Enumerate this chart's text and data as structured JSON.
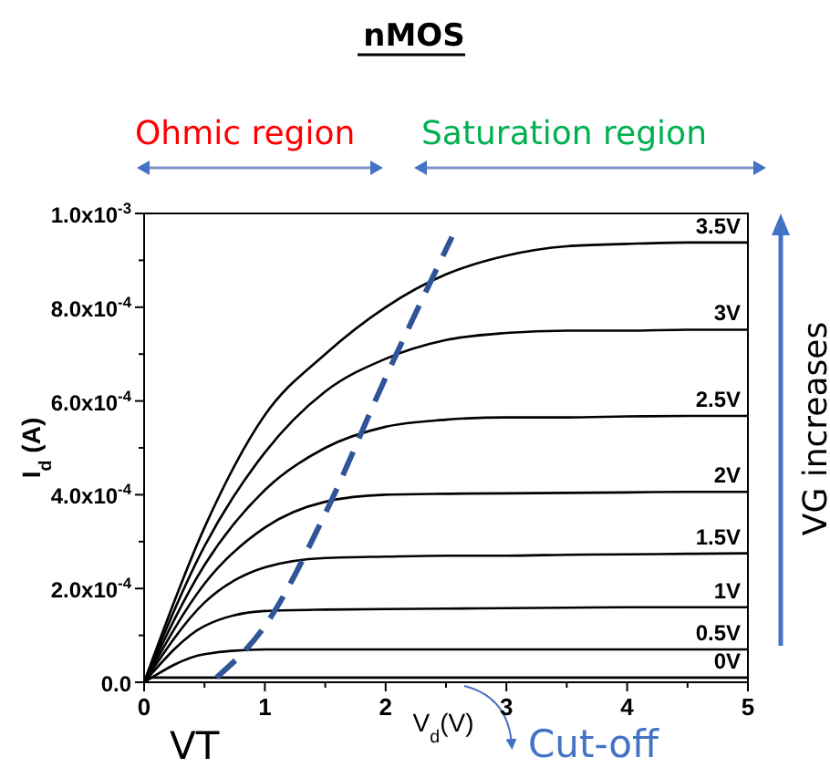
{
  "chart_data": {
    "type": "line",
    "title": "nMOS",
    "xlabel": "V$_{d}$(V)",
    "ylabel": "I$_{d}$ (A)",
    "x": [
      0,
      0.5,
      1,
      1.5,
      2,
      2.5,
      3,
      3.5,
      4,
      4.5,
      5
    ],
    "series": [
      {
        "name": "3.5V",
        "color": "#000000",
        "values": [
          0,
          0.00033,
          0.00057,
          0.0007,
          0.0008,
          0.00087,
          0.00091,
          0.00093,
          0.000935,
          0.000938,
          0.000938
        ]
      },
      {
        "name": "3V",
        "color": "#000000",
        "values": [
          0,
          0.00029,
          0.00049,
          0.00062,
          0.00069,
          0.00073,
          0.000745,
          0.00075,
          0.00075,
          0.000752,
          0.000752
        ]
      },
      {
        "name": "2.5V",
        "color": "#000000",
        "values": [
          0,
          0.00025,
          0.00041,
          0.0005,
          0.000545,
          0.00056,
          0.000565,
          0.000565,
          0.000567,
          0.000568,
          0.000568
        ]
      },
      {
        "name": "2V",
        "color": "#000000",
        "values": [
          0,
          0.00021,
          0.00033,
          0.000385,
          0.0004,
          0.000402,
          0.000403,
          0.000404,
          0.000405,
          0.000406,
          0.000406
        ]
      },
      {
        "name": "1.5V",
        "color": "#000000",
        "values": [
          0,
          0.00017,
          0.000245,
          0.000265,
          0.000268,
          0.00027,
          0.00027,
          0.000272,
          0.000273,
          0.000274,
          0.000275
        ]
      },
      {
        "name": "1V",
        "color": "#000000",
        "values": [
          0,
          0.00012,
          0.000152,
          0.000155,
          0.000156,
          0.000157,
          0.000158,
          0.000159,
          0.00016,
          0.00016,
          0.00016
        ]
      },
      {
        "name": "0.5V",
        "color": "#000000",
        "values": [
          0,
          6e-05,
          7e-05,
          7e-05,
          7e-05,
          7e-05,
          7e-05,
          7e-05,
          7e-05,
          7e-05,
          7e-05
        ]
      },
      {
        "name": "0V",
        "color": "#000000",
        "values": [
          1e-05,
          1e-05,
          1e-05,
          1e-05,
          1e-05,
          1e-05,
          1e-05,
          1e-05,
          1e-05,
          1e-05,
          1e-05
        ]
      },
      {
        "color": "#2f5597",
        "line_style": "dashed",
        "x": [
          0.6,
          1.0,
          1.5,
          2.0,
          2.55
        ],
        "values": [
          1e-05,
          0.00012,
          0.00036,
          0.00065,
          0.00095
        ]
      }
    ],
    "xlim": [
      0,
      5
    ],
    "ylim": [
      0,
      0.001
    ],
    "xticks": [
      0,
      {
        "value": 0.5,
        "label": null
      },
      1,
      {
        "value": 1.5,
        "label": null
      },
      2,
      {
        "value": 2.5,
        "label": null
      },
      3,
      {
        "value": 3.5,
        "label": null
      },
      4,
      {
        "value": 4.5,
        "label": null
      },
      5
    ],
    "yticks": [
      {
        "value": 0,
        "label": "0.0"
      },
      {
        "value": 0.0001,
        "label": null
      },
      {
        "value": 0.0002,
        "label": "2.0x10$^{-4}$"
      },
      {
        "value": 0.0003,
        "label": null
      },
      {
        "value": 0.0004,
        "label": "4.0x10$^{-4}$"
      },
      {
        "value": 0.0005,
        "label": null
      },
      {
        "value": 0.0006,
        "label": "6.0x10$^{-4}$"
      },
      {
        "value": 0.0007,
        "label": null
      },
      {
        "value": 0.0008,
        "label": "8.0x10$^{-4}$"
      },
      {
        "value": 0.0009,
        "label": null
      },
      {
        "value": 0.001,
        "label": "1.0x10$^{-3}$"
      }
    ],
    "annotations": [
      "Ohmic region",
      "Saturation region",
      "VG increases",
      {
        "text": "VT",
        "x": 0,
        "y": 0
      },
      {
        "text": "Cut-off",
        "x": 2.5,
        "y": 0
      }
    ]
  }
}
